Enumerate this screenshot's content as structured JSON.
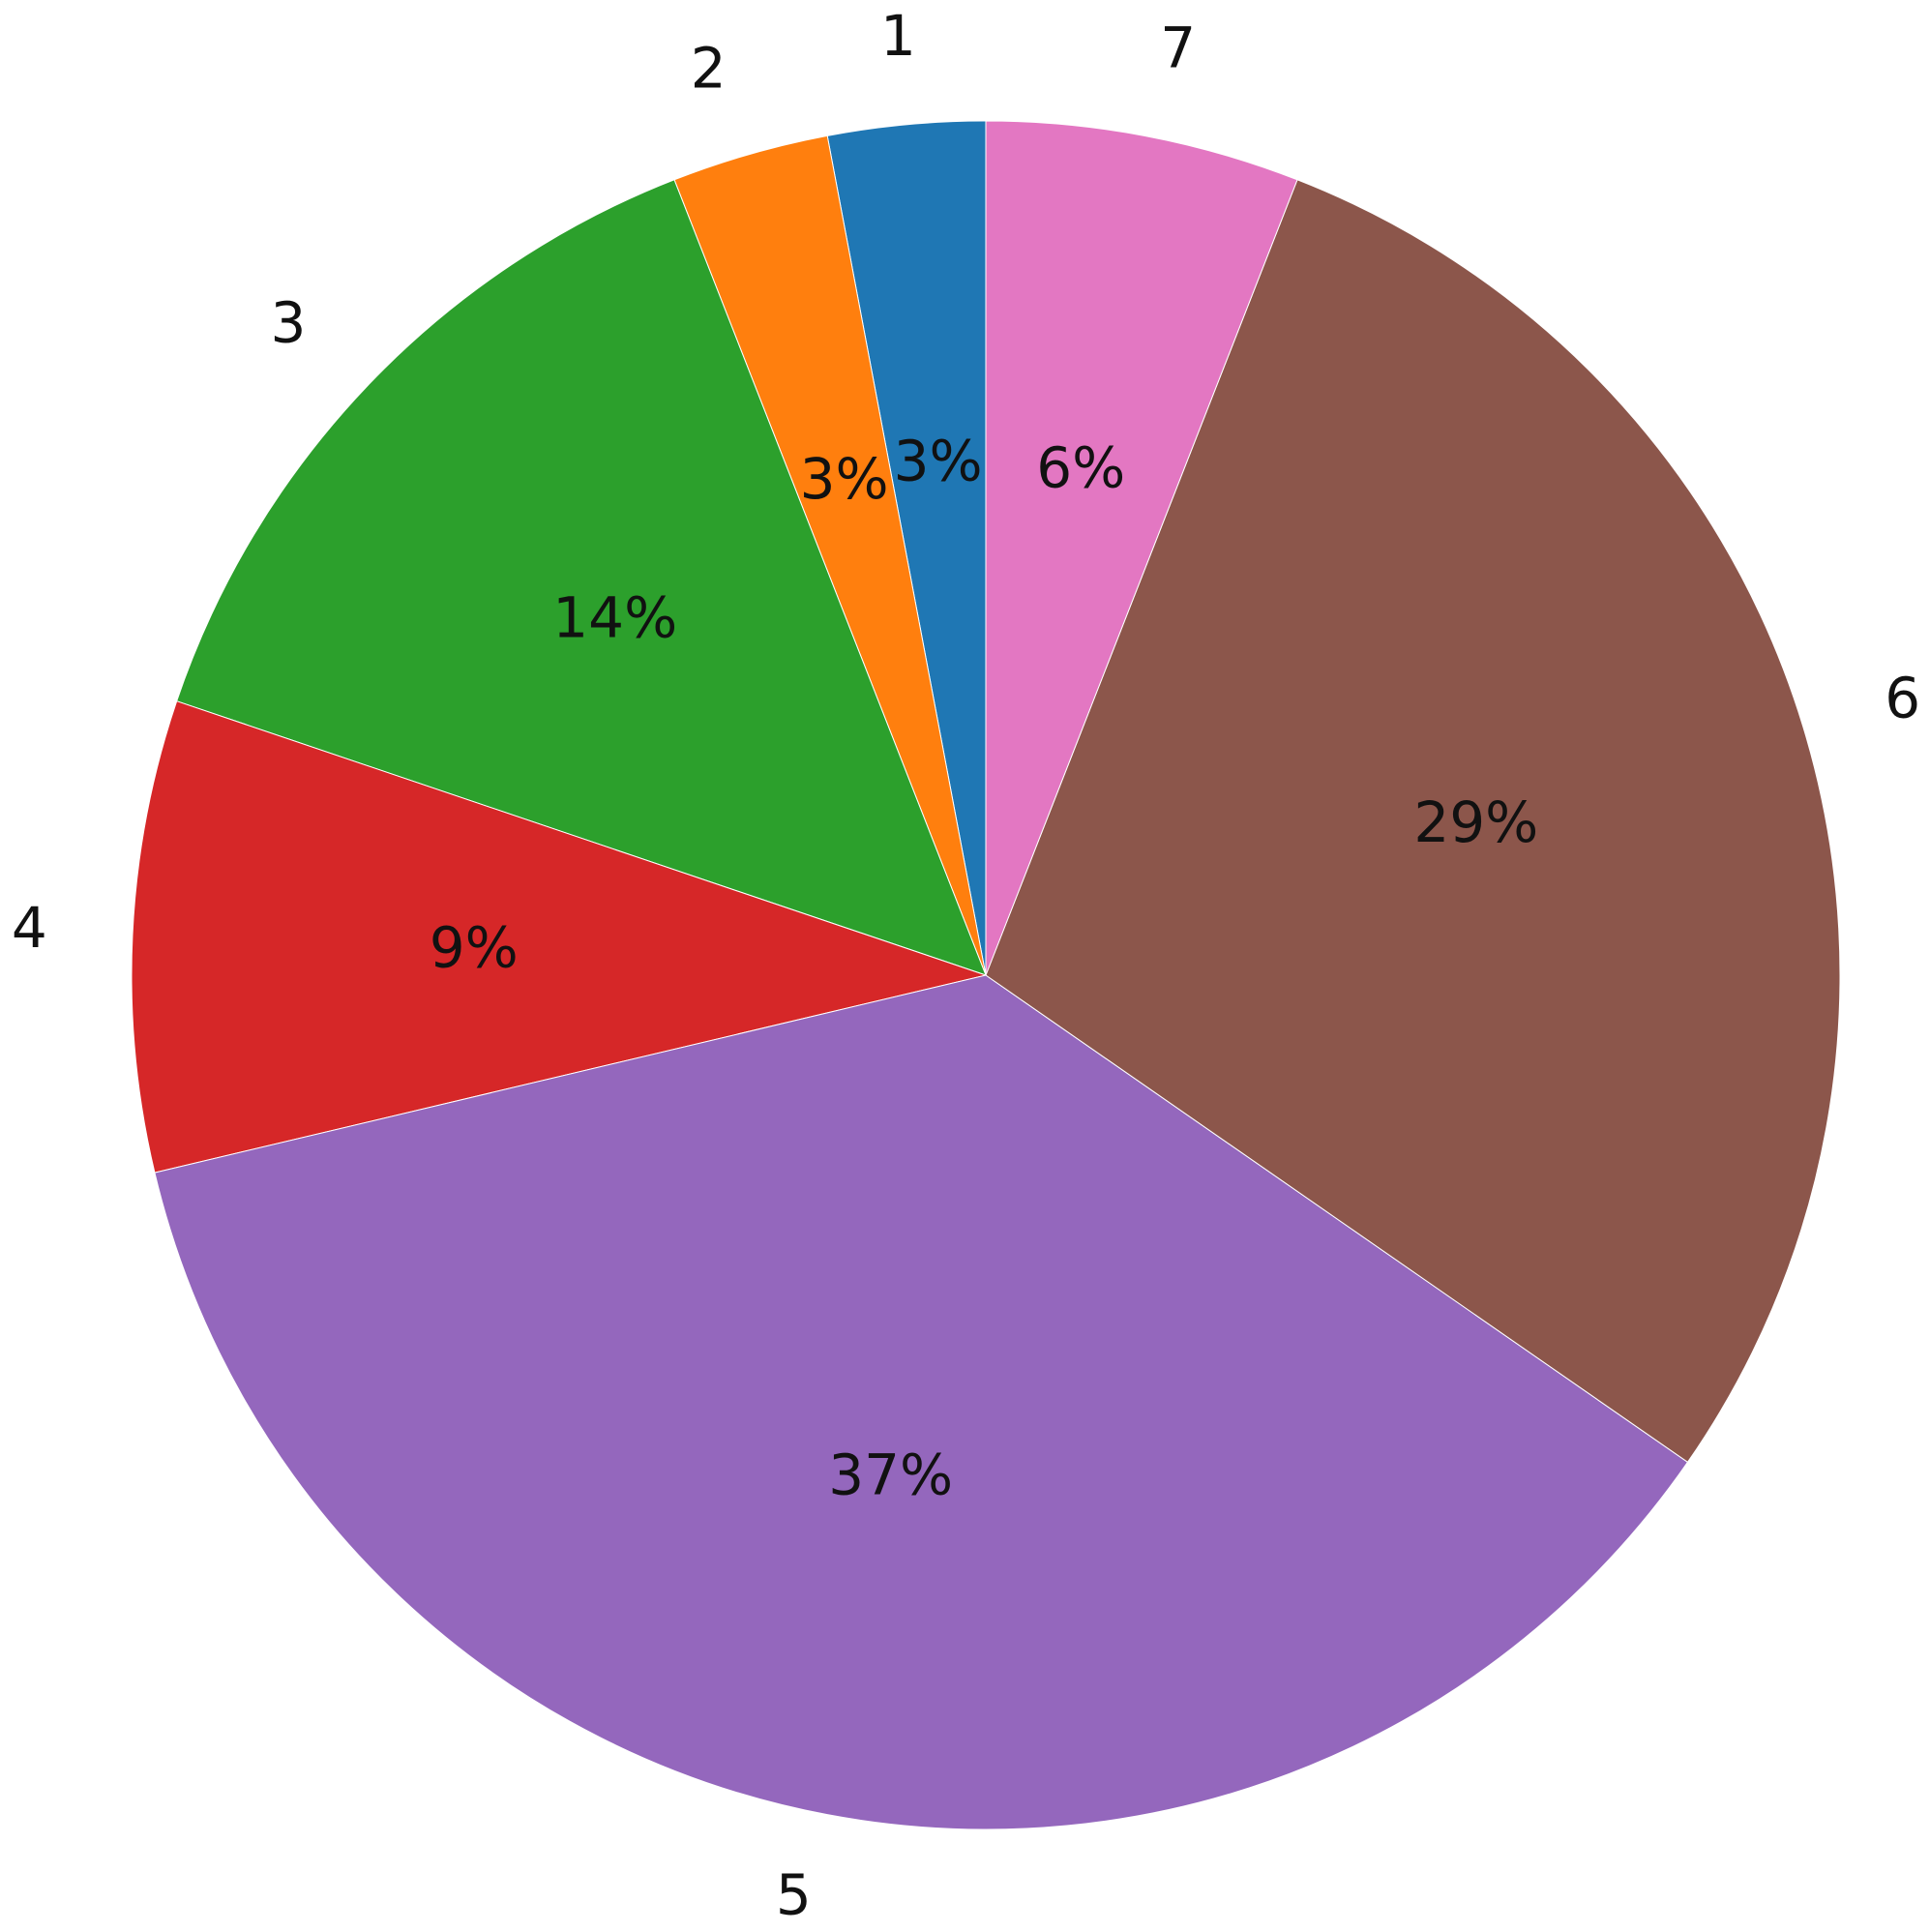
{
  "chart_data": {
    "type": "pie",
    "categories": [
      "1",
      "2",
      "3",
      "4",
      "5",
      "6",
      "7"
    ],
    "values": [
      3,
      3,
      14,
      9,
      37,
      29,
      6
    ],
    "value_labels": [
      "3%",
      "3%",
      "14%",
      "9%",
      "37%",
      "29%",
      "6%"
    ],
    "colors": [
      "#1f77b4",
      "#ff7f0e",
      "#2ca02c",
      "#d62728",
      "#9467bd",
      "#8c564b",
      "#e377c2"
    ]
  }
}
